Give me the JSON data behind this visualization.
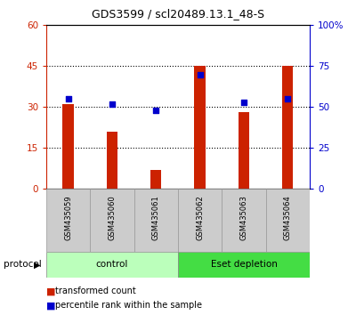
{
  "title": "GDS3599 / scl20489.13.1_48-S",
  "categories": [
    "GSM435059",
    "GSM435060",
    "GSM435061",
    "GSM435062",
    "GSM435063",
    "GSM435064"
  ],
  "bar_values": [
    31,
    21,
    7,
    45,
    28,
    45
  ],
  "scatter_values": [
    55,
    52,
    48,
    70,
    53,
    55
  ],
  "bar_color": "#cc2200",
  "scatter_color": "#0000cc",
  "left_ylim": [
    0,
    60
  ],
  "right_ylim": [
    0,
    100
  ],
  "left_yticks": [
    0,
    15,
    30,
    45,
    60
  ],
  "right_yticks": [
    0,
    25,
    50,
    75,
    100
  ],
  "right_yticklabels": [
    "0",
    "25",
    "50",
    "75",
    "100%"
  ],
  "groups": [
    {
      "label": "control",
      "start": 0,
      "end": 3,
      "color": "#bbffbb"
    },
    {
      "label": "Eset depletion",
      "start": 3,
      "end": 6,
      "color": "#44dd44"
    }
  ],
  "protocol_label": "protocol",
  "legend_bar_label": "transformed count",
  "legend_scatter_label": "percentile rank within the sample",
  "dotted_yticks": [
    15,
    30,
    45
  ],
  "bar_width": 0.25
}
